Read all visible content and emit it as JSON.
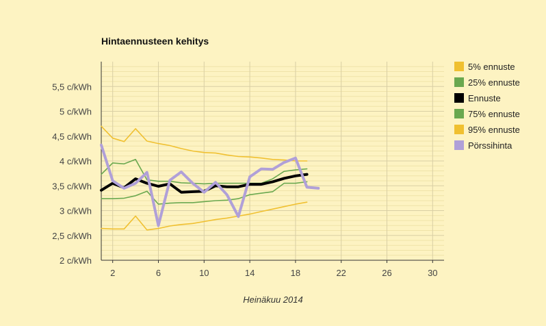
{
  "chart_data": {
    "type": "line",
    "title": "Hintaennusteen kehitys",
    "xlabel": "Heinäkuu 2014",
    "ylabel": "",
    "xlim": [
      1,
      31
    ],
    "ylim": [
      2,
      6
    ],
    "x_ticks": [
      2,
      6,
      10,
      14,
      18,
      22,
      26,
      30
    ],
    "y_ticks": [
      {
        "value": 2.0,
        "label": "2 c/kWh"
      },
      {
        "value": 2.5,
        "label": "2,5 c/kWh"
      },
      {
        "value": 3.0,
        "label": "3 c/kWh"
      },
      {
        "value": 3.5,
        "label": "3,5 c/kWh"
      },
      {
        "value": 4.0,
        "label": "4 c/kWh"
      },
      {
        "value": 4.5,
        "label": "4,5 c/kWh"
      },
      {
        "value": 5.0,
        "label": "5 c/kWh"
      },
      {
        "value": 5.5,
        "label": "5,5 c/kWh"
      }
    ],
    "grid": true,
    "legend_position": "right",
    "series": [
      {
        "name": "5% ennuste",
        "color": "#f0c030",
        "x": [
          1,
          2,
          3,
          4,
          5,
          6,
          7,
          8,
          9,
          10,
          11,
          12,
          13,
          14,
          15,
          16,
          17,
          18,
          19
        ],
        "values": [
          2.64,
          2.63,
          2.63,
          2.89,
          2.61,
          2.64,
          2.69,
          2.72,
          2.74,
          2.78,
          2.82,
          2.85,
          2.89,
          2.93,
          2.98,
          3.03,
          3.08,
          3.13,
          3.17
        ]
      },
      {
        "name": "25% ennuste",
        "color": "#6aa84f",
        "x": [
          1,
          2,
          3,
          4,
          5,
          6,
          7,
          8,
          9,
          10,
          11,
          12,
          13,
          14,
          15,
          16,
          17,
          18,
          19
        ],
        "values": [
          3.24,
          3.24,
          3.25,
          3.3,
          3.39,
          3.13,
          3.15,
          3.16,
          3.16,
          3.18,
          3.2,
          3.21,
          3.24,
          3.32,
          3.35,
          3.38,
          3.55,
          3.55,
          3.58
        ]
      },
      {
        "name": "Ennuste",
        "color": "#000000",
        "x": [
          1,
          2,
          3,
          4,
          5,
          6,
          7,
          8,
          9,
          10,
          11,
          12,
          13,
          14,
          15,
          16,
          17,
          18,
          19
        ],
        "values": [
          3.41,
          3.55,
          3.46,
          3.64,
          3.55,
          3.49,
          3.54,
          3.37,
          3.38,
          3.39,
          3.5,
          3.48,
          3.48,
          3.53,
          3.53,
          3.58,
          3.65,
          3.7,
          3.73
        ]
      },
      {
        "name": "75% ennuste",
        "color": "#6aa84f",
        "x": [
          1,
          2,
          3,
          4,
          5,
          6,
          7,
          8,
          9,
          10,
          11,
          12,
          13,
          14,
          15,
          16,
          17,
          18,
          19
        ],
        "values": [
          3.73,
          3.96,
          3.94,
          4.03,
          3.62,
          3.59,
          3.59,
          3.56,
          3.55,
          3.54,
          3.55,
          3.55,
          3.55,
          3.55,
          3.55,
          3.64,
          3.79,
          3.82,
          3.84
        ]
      },
      {
        "name": "95% ennuste",
        "color": "#f0c030",
        "x": [
          1,
          2,
          3,
          4,
          5,
          6,
          7,
          8,
          9,
          10,
          11,
          12,
          13,
          14,
          15,
          16,
          17,
          18,
          19
        ],
        "values": [
          4.7,
          4.46,
          4.39,
          4.65,
          4.4,
          4.35,
          4.31,
          4.25,
          4.2,
          4.17,
          4.16,
          4.12,
          4.09,
          4.08,
          4.06,
          4.03,
          4.02,
          4.0,
          4.0
        ]
      },
      {
        "name": "Pörssihinta",
        "color": "#b0a0d8",
        "x": [
          1,
          2,
          3,
          4,
          5,
          6,
          7,
          8,
          9,
          10,
          11,
          12,
          13,
          14,
          15,
          16,
          17,
          18,
          19,
          20
        ],
        "values": [
          4.32,
          3.6,
          3.45,
          3.55,
          3.77,
          2.7,
          3.61,
          3.78,
          3.55,
          3.37,
          3.57,
          3.32,
          2.88,
          3.68,
          3.84,
          3.83,
          3.97,
          4.06,
          3.47,
          3.45
        ]
      }
    ]
  }
}
